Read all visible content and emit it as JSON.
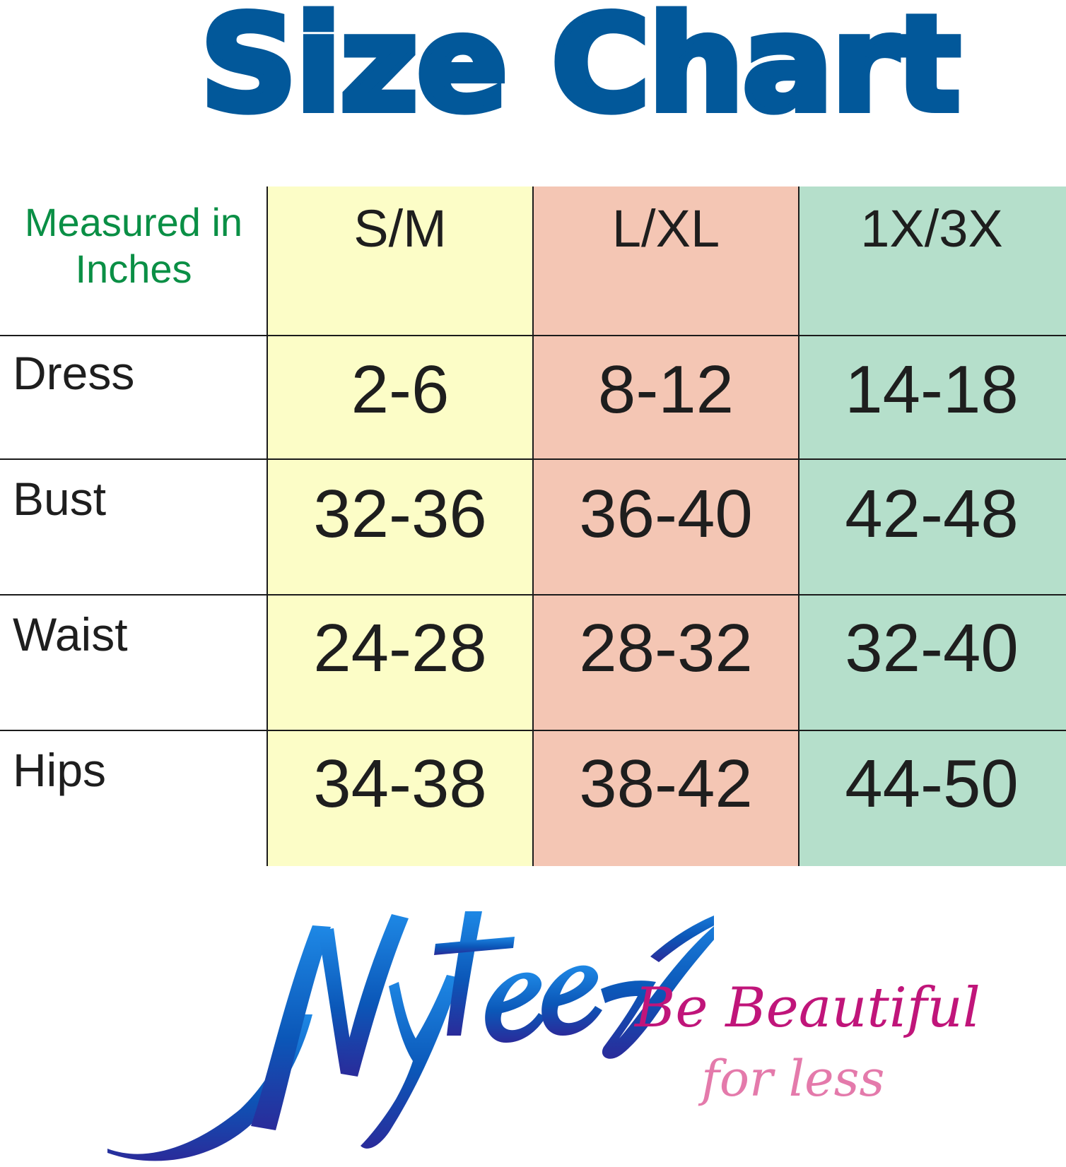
{
  "title": "Size Chart",
  "colors": {
    "title": "#02589a",
    "measured_note": "#0a8f45",
    "sm_column": "#fcfdc7",
    "lxl_column": "#f4c6b4",
    "x3x_column": "#b5dfcb",
    "tagline_main": "#c0157a",
    "tagline_sub": "#e47aab",
    "logo_gradient_top": "#1e88e5",
    "logo_gradient_bottom": "#2a2b9a"
  },
  "chart_data": {
    "type": "table",
    "corner_label_line1": "Measured in",
    "corner_label_line2": "Inches",
    "columns": [
      "S/M",
      "L/XL",
      "1X/3X"
    ],
    "rows": [
      {
        "label": "Dress",
        "values": [
          "2-6",
          "8-12",
          "14-18"
        ]
      },
      {
        "label": "Bust",
        "values": [
          "32-36",
          "36-40",
          "42-48"
        ]
      },
      {
        "label": "Waist",
        "values": [
          "24-28",
          "28-32",
          "32-40"
        ]
      },
      {
        "label": "Hips",
        "values": [
          "34-38",
          "38-42",
          "44-50"
        ]
      }
    ]
  },
  "brand": {
    "logo_text": "Nyteez",
    "tagline_main": "Be Beautiful",
    "tagline_sub": "for less"
  }
}
